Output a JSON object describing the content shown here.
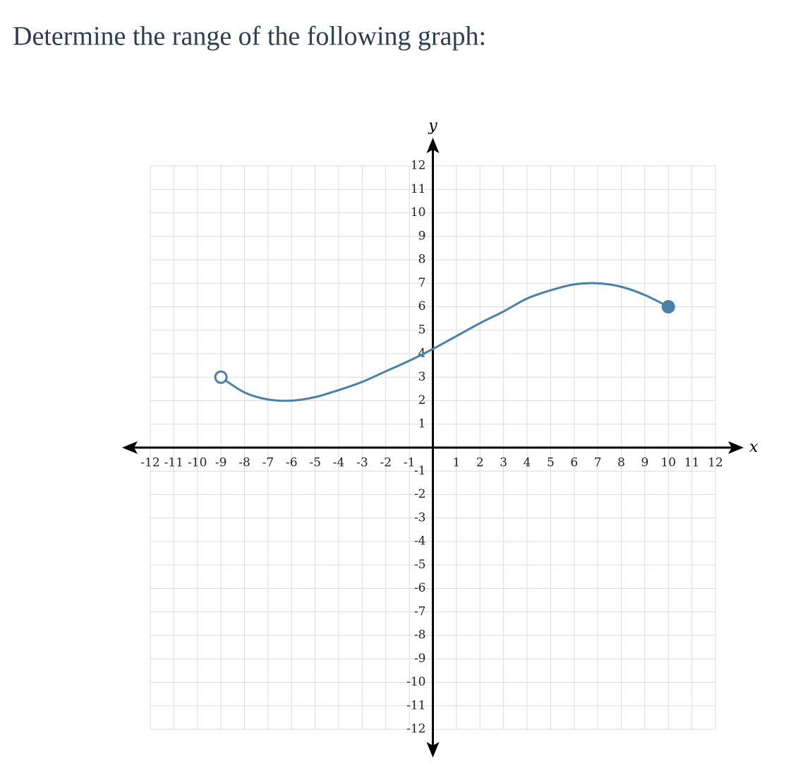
{
  "chart_data": {
    "type": "line",
    "title": "Determine the range of the following graph:",
    "x_label": "x",
    "y_label": "y",
    "x": [
      -9,
      -8,
      -7,
      -6,
      -5,
      -4,
      -3,
      -2,
      -1,
      0,
      1,
      2,
      3,
      4,
      5,
      6,
      7,
      8,
      9,
      10
    ],
    "series": [
      {
        "color": "#4b80a8",
        "values": [
          3,
          2.35,
          2.05,
          2,
          2.15,
          2.45,
          2.8,
          3.25,
          3.7,
          4.2,
          4.75,
          5.3,
          5.8,
          6.35,
          6.7,
          6.95,
          7,
          6.85,
          6.5,
          6
        ]
      }
    ],
    "start_marker": "open",
    "end_marker": "filled",
    "xlim": [
      -12,
      12
    ],
    "ylim": [
      -12,
      12
    ],
    "xticks": [
      -12,
      -11,
      -10,
      -9,
      -8,
      -7,
      -6,
      -5,
      -4,
      -3,
      -2,
      -1,
      1,
      2,
      3,
      4,
      5,
      6,
      7,
      8,
      9,
      10,
      11,
      12
    ],
    "yticks": [
      -12,
      -11,
      -10,
      -9,
      -8,
      -7,
      -6,
      -5,
      -4,
      -3,
      -2,
      -1,
      1,
      2,
      3,
      4,
      5,
      6,
      7,
      8,
      9,
      10,
      11,
      12
    ],
    "grid": true
  }
}
